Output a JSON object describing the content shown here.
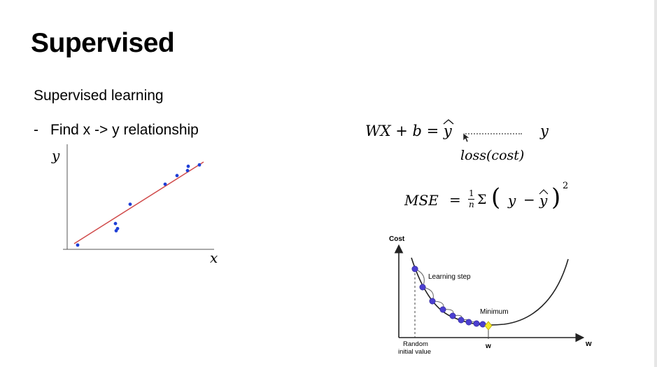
{
  "slide": {
    "title": "Supervised",
    "subtitle": "Supervised learning",
    "bullet": {
      "marker": "-",
      "text": "Find x -> y relationship"
    }
  },
  "scatter_chart": {
    "xlabel": "x",
    "ylabel": "y",
    "colors": {
      "points": "#1f3fd6",
      "line": "#d04a4a",
      "axis": "#555555"
    },
    "chart_data": {
      "type": "scatter",
      "x": [
        1.5,
        6.9,
        7.0,
        7.2,
        9.0,
        14.0,
        15.7,
        17.2,
        17.3,
        18.9
      ],
      "y": [
        0.6,
        3.6,
        2.6,
        2.9,
        6.3,
        9.1,
        10.3,
        11.0,
        11.6,
        11.8
      ],
      "trendline": {
        "x": [
          1,
          19.5
        ],
        "y": [
          0.8,
          12.2
        ]
      },
      "xlim": [
        0,
        20
      ],
      "ylim": [
        0,
        13.5
      ]
    }
  },
  "equations": {
    "hypothesis": {
      "lhs": "WX + b = ",
      "yhat": "y",
      "target": "y",
      "loss_label": "loss(cost)"
    },
    "mse": {
      "lhs": "MSE",
      "eq": "=",
      "frac_num": "1",
      "frac_den": "n",
      "sigma": "Σ",
      "open": "(",
      "y": "y",
      "minus": "−",
      "yhat": "y",
      "close": ")",
      "exp": "2"
    }
  },
  "gd_diagram": {
    "cost_label": "Cost",
    "learning_step_label": "Learning step",
    "minimum_label": "Minimum",
    "w_tick_label": "w",
    "w_axis_label": "w",
    "random_label_1": "Random",
    "random_label_2": "initial value",
    "colors": {
      "step": "#4b3fd0",
      "minimum": "#f2e82a",
      "curve": "#222222"
    }
  }
}
